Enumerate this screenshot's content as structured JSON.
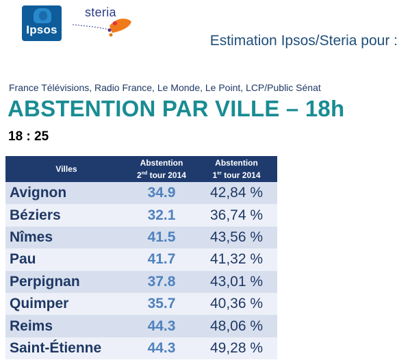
{
  "logos": {
    "ipsos": "Ipsos",
    "steria": "steria"
  },
  "header": {
    "estimation": "Estimation Ipsos/Steria pour :",
    "sponsors": "France Télévisions, Radio France, Le Monde, Le Point, LCP/Public Sénat",
    "title": "ABSTENTION PAR VILLE – 18h",
    "time": "18 : 25"
  },
  "table": {
    "headers": {
      "city": "Villes",
      "second_round_line1": "Abstention",
      "second_round_ord": "2",
      "second_round_sup": "nd",
      "second_round_rest": " tour 2014",
      "first_round_line1": "Abstention",
      "first_round_ord": "1",
      "first_round_sup": "er",
      "first_round_rest": " tour 2014"
    },
    "rows": [
      {
        "city": "Avignon",
        "round2": "34.9",
        "round1": "42,84 %"
      },
      {
        "city": "Béziers",
        "round2": "32.1",
        "round1": "36,74 %"
      },
      {
        "city": "Nîmes",
        "round2": "41.5",
        "round1": "43,56 %"
      },
      {
        "city": "Pau",
        "round2": "41.7",
        "round1": "41,32 %"
      },
      {
        "city": "Perpignan",
        "round2": "37.8",
        "round1": "43,01 %"
      },
      {
        "city": "Quimper",
        "round2": "35.7",
        "round1": "40,36 %"
      },
      {
        "city": "Reims",
        "round2": "44.3",
        "round1": "48,06 %"
      },
      {
        "city": "Saint-Étienne",
        "round2": "44.3",
        "round1": "49,28 %"
      }
    ]
  },
  "colors": {
    "title": "#1a8c93",
    "header_bg": "#1f3b6e",
    "row_dark": "#d7dfee",
    "row_light": "#edf0f8",
    "round2_value": "#4f81bd"
  }
}
